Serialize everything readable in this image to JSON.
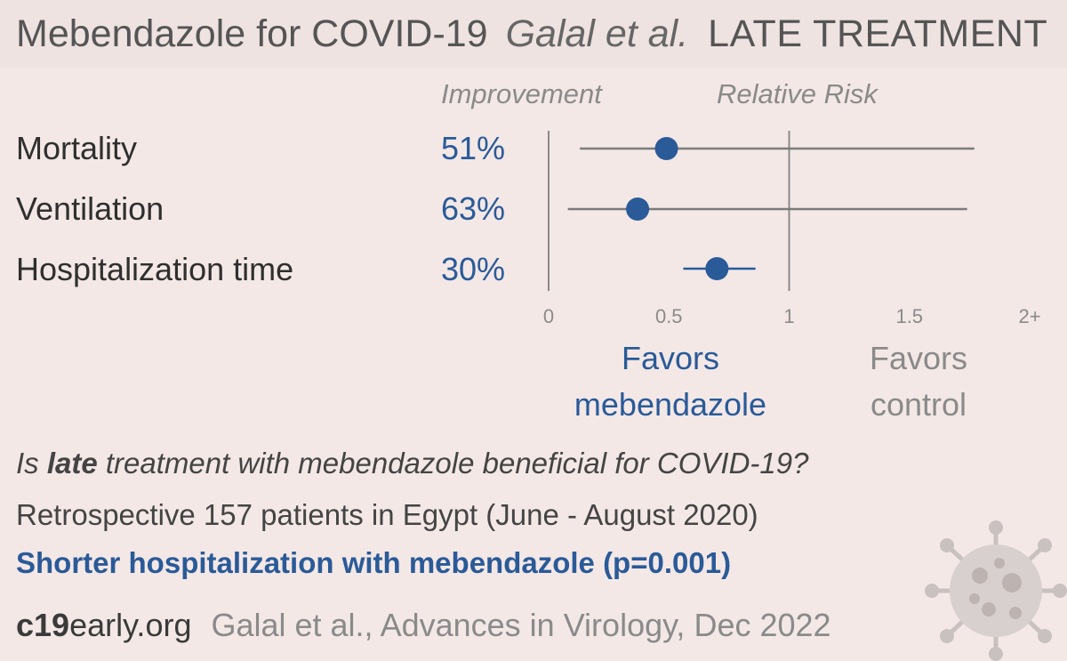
{
  "header": {
    "title": "Mebendazole for COVID-19",
    "authors": "Galal et al.",
    "treatment_stage": "LATE TREATMENT"
  },
  "columns": {
    "improvement": "Improvement",
    "relative_risk": "Relative Risk"
  },
  "chart_data": {
    "type": "forest",
    "xlim": [
      0,
      2
    ],
    "ticks": [
      {
        "value": 0,
        "label": "0"
      },
      {
        "value": 0.5,
        "label": "0.5"
      },
      {
        "value": 1,
        "label": "1"
      },
      {
        "value": 1.5,
        "label": "1.5"
      },
      {
        "value": 2,
        "label": "2+"
      }
    ],
    "outcomes": [
      {
        "name": "Mortality",
        "improvement": "51%",
        "rr": 0.49,
        "ci": [
          0.13,
          1.77
        ]
      },
      {
        "name": "Ventilation",
        "improvement": "63%",
        "rr": 0.37,
        "ci": [
          0.08,
          1.74
        ]
      },
      {
        "name": "Hospitalization time",
        "improvement": "30%",
        "rr": 0.7,
        "ci": [
          0.56,
          0.86
        ]
      }
    ],
    "favors_left": [
      "Favors",
      "mebendazole"
    ],
    "favors_right": [
      "Favors",
      "control"
    ],
    "colors": {
      "treatment": "#2a5a98",
      "axis": "#8a8a8a",
      "ci": "#7a7a7a"
    }
  },
  "question": {
    "prefix": "Is ",
    "emphasis": "late",
    "suffix": " treatment with mebendazole beneficial for COVID-19?"
  },
  "description": "Retrospective 157 patients in Egypt (June - August 2020)",
  "conclusion": "Shorter hospitalization with mebendazole (p=0.001)",
  "footer": {
    "site_bold": "c19",
    "site_rest": "early.org",
    "citation": "Galal et al., Advances in Virology, Dec 2022"
  },
  "icons": {
    "virus": "coronavirus-icon"
  }
}
